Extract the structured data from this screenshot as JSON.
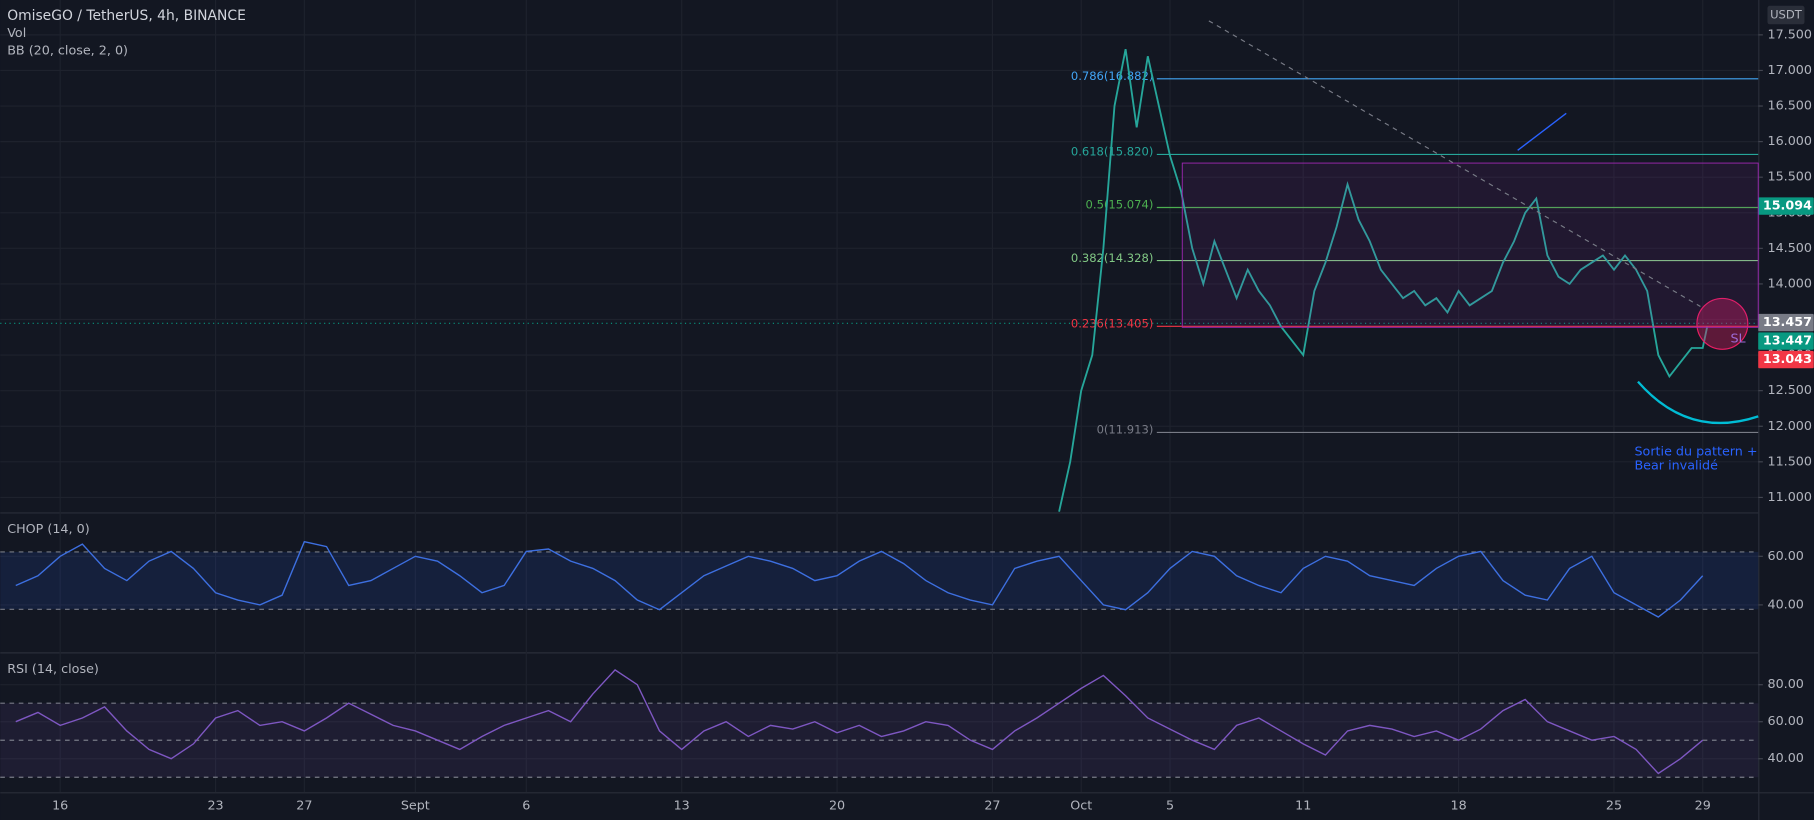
{
  "chart_data": [
    {
      "type": "line",
      "title": "OmiseGO / TetherUS, 4h, BINANCE",
      "indicator_labels": [
        "Vol",
        "BB (20, close, 2, 0)"
      ],
      "axis_unit": "USDT",
      "color": "#26a69a",
      "x": [
        45,
        45.5,
        46,
        46.5,
        47,
        47.5,
        48,
        48.5,
        49,
        49.5,
        50,
        50.5,
        51,
        51.5,
        52,
        52.5,
        53,
        53.5,
        54,
        54.5,
        55,
        55.5,
        56,
        56.5,
        57,
        57.5,
        58,
        58.5,
        59,
        59.5,
        60,
        60.5,
        61,
        61.5,
        62,
        62.5,
        63,
        63.5,
        64,
        64.5,
        65,
        65.5,
        66,
        66.5,
        67,
        67.5,
        68,
        68.5,
        69,
        69.5,
        70,
        70.5,
        71,
        71.5,
        72,
        72.5,
        73,
        73.5,
        74,
        74.2
      ],
      "values": [
        10.8,
        11.5,
        12.5,
        13.0,
        14.5,
        16.5,
        17.3,
        16.2,
        17.2,
        16.5,
        15.8,
        15.3,
        14.5,
        14.0,
        14.6,
        14.2,
        13.8,
        14.2,
        13.9,
        13.7,
        13.4,
        13.2,
        13.0,
        13.9,
        14.3,
        14.8,
        15.4,
        14.9,
        14.6,
        14.2,
        14.0,
        13.8,
        13.9,
        13.7,
        13.8,
        13.6,
        13.9,
        13.7,
        13.8,
        13.9,
        14.3,
        14.6,
        15.0,
        15.2,
        14.4,
        14.1,
        14.0,
        14.2,
        14.3,
        14.4,
        14.2,
        14.4,
        14.2,
        13.9,
        13.0,
        12.7,
        12.9,
        13.1,
        13.1,
        13.4
      ],
      "xlim": [
        -2.7,
        76.5
      ],
      "xticks": [
        {
          "value": 0,
          "label": "16"
        },
        {
          "value": 7,
          "label": "23"
        },
        {
          "value": 11,
          "label": "27"
        },
        {
          "value": 16,
          "label": "Sept"
        },
        {
          "value": 21,
          "label": "6"
        },
        {
          "value": 28,
          "label": "13"
        },
        {
          "value": 35,
          "label": "20"
        },
        {
          "value": 42,
          "label": "27"
        },
        {
          "value": 46,
          "label": "Oct"
        },
        {
          "value": 50,
          "label": "5"
        },
        {
          "value": 56,
          "label": "11"
        },
        {
          "value": 63,
          "label": "18"
        },
        {
          "value": 70,
          "label": "25"
        },
        {
          "value": 74,
          "label": "29"
        }
      ],
      "ylim": [
        10.79,
        17.99
      ],
      "yticks": [
        {
          "value": 11,
          "label": "11.000"
        },
        {
          "value": 11.5,
          "label": "11.500"
        },
        {
          "value": 12,
          "label": "12.000"
        },
        {
          "value": 12.5,
          "label": "12.500"
        },
        {
          "value": 13,
          "label": "13.000"
        },
        {
          "value": 13.5,
          "label": "13.500"
        },
        {
          "value": 14,
          "label": "14.000"
        },
        {
          "value": 14.5,
          "label": "14.500"
        },
        {
          "value": 15,
          "label": "15.000"
        },
        {
          "value": 15.5,
          "label": "15.500"
        },
        {
          "value": 16,
          "label": "16.000"
        },
        {
          "value": 16.5,
          "label": "16.500"
        },
        {
          "value": 17,
          "label": "17.000"
        },
        {
          "value": 17.5,
          "label": "17.500"
        }
      ],
      "price_labels": [
        {
          "value": 15.094,
          "color": "#089981"
        },
        {
          "value": 13.457,
          "color": "#787b86"
        },
        {
          "value": 13.447,
          "color": "#089981"
        },
        {
          "value": 13.043,
          "color": "#f23645"
        }
      ],
      "fib_levels": [
        {
          "label": "0.786(16.882)",
          "value": 16.882,
          "color": "#42a5f5"
        },
        {
          "label": "0.618(15.820)",
          "value": 15.82,
          "color": "#26a69a"
        },
        {
          "label": "0.5(15.074)",
          "value": 15.074,
          "color": "#4caf50"
        },
        {
          "label": "0.382(14.328)",
          "value": 14.328,
          "color": "#81c784"
        },
        {
          "label": "0.236(13.405)",
          "value": 13.405,
          "color": "#f23645"
        },
        {
          "label": "0(11.913)",
          "value": 11.913,
          "color": "#787b86"
        }
      ],
      "annotations": [
        "Sortie du pattern +",
        "Bear invalidé",
        "SL"
      ]
    },
    {
      "type": "line",
      "title": "CHOP (14, 0)",
      "color": "#3d6fe0",
      "x": [
        -2,
        -1,
        0,
        1,
        2,
        3,
        4,
        5,
        6,
        7,
        8,
        9,
        10,
        11,
        12,
        13,
        14,
        15,
        16,
        17,
        18,
        19,
        20,
        21,
        22,
        23,
        24,
        25,
        26,
        27,
        28,
        29,
        30,
        31,
        32,
        33,
        34,
        35,
        36,
        37,
        38,
        39,
        40,
        41,
        42,
        43,
        44,
        45,
        46,
        47,
        48,
        49,
        50,
        51,
        52,
        53,
        54,
        55,
        56,
        57,
        58,
        59,
        60,
        61,
        62,
        63,
        64,
        65,
        66,
        67,
        68,
        69,
        70,
        71,
        72,
        73,
        74
      ],
      "values": [
        48,
        52,
        60,
        65,
        55,
        50,
        58,
        62,
        55,
        45,
        42,
        40,
        44,
        66,
        64,
        48,
        50,
        55,
        60,
        58,
        52,
        45,
        48,
        62,
        63,
        58,
        55,
        50,
        42,
        38,
        45,
        52,
        56,
        60,
        58,
        55,
        50,
        52,
        58,
        62,
        57,
        50,
        45,
        42,
        40,
        55,
        58,
        60,
        50,
        40,
        38,
        45,
        55,
        62,
        60,
        52,
        48,
        45,
        55,
        60,
        58,
        52,
        50,
        48,
        55,
        60,
        62,
        50,
        44,
        42,
        55,
        60,
        45,
        40,
        35,
        42,
        52
      ],
      "ylim": [
        20.5,
        77.6
      ],
      "yticks": [
        {
          "value": 40,
          "label": "40.00"
        },
        {
          "value": 60,
          "label": "60.00"
        }
      ],
      "levels": [
        61.8,
        38.2
      ]
    },
    {
      "type": "line",
      "title": "RSI (14, close)",
      "color": "#7e57c2",
      "x": [
        -2,
        -1,
        0,
        1,
        2,
        3,
        4,
        5,
        6,
        7,
        8,
        9,
        10,
        11,
        12,
        13,
        14,
        15,
        16,
        17,
        18,
        19,
        20,
        21,
        22,
        23,
        24,
        25,
        26,
        27,
        28,
        29,
        30,
        31,
        32,
        33,
        34,
        35,
        36,
        37,
        38,
        39,
        40,
        41,
        42,
        43,
        44,
        45,
        46,
        47,
        48,
        49,
        50,
        51,
        52,
        53,
        54,
        55,
        56,
        57,
        58,
        59,
        60,
        61,
        62,
        63,
        64,
        65,
        66,
        67,
        68,
        69,
        70,
        71,
        72,
        73,
        74
      ],
      "values": [
        60,
        65,
        58,
        62,
        68,
        55,
        45,
        40,
        48,
        62,
        66,
        58,
        60,
        55,
        62,
        70,
        64,
        58,
        55,
        50,
        45,
        52,
        58,
        62,
        66,
        60,
        75,
        88,
        80,
        55,
        45,
        55,
        60,
        52,
        58,
        56,
        60,
        54,
        58,
        52,
        55,
        60,
        58,
        50,
        45,
        55,
        62,
        70,
        78,
        85,
        74,
        62,
        56,
        50,
        45,
        58,
        62,
        55,
        48,
        42,
        55,
        58,
        56,
        52,
        55,
        50,
        56,
        66,
        72,
        60,
        55,
        50,
        52,
        45,
        32,
        40,
        50
      ],
      "ylim": [
        21.9,
        96.9
      ],
      "yticks": [
        {
          "value": 40,
          "label": "40.00"
        },
        {
          "value": 60,
          "label": "60.00"
        },
        {
          "value": 80,
          "label": "80.00"
        }
      ],
      "levels": [
        70,
        50,
        30
      ]
    }
  ]
}
